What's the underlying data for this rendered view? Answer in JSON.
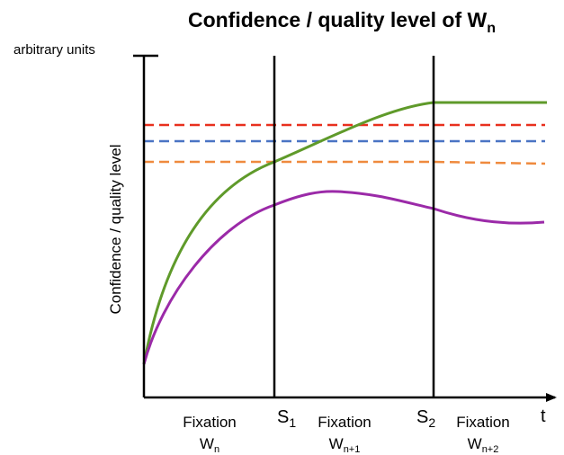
{
  "title": {
    "text": "Confidence / quality level of W",
    "sub": "n"
  },
  "y_unit": "arbitrary units",
  "y_label": "Confidence / quality level",
  "x_label": "t",
  "markers": [
    {
      "label": "S",
      "sub": "1"
    },
    {
      "label": "S",
      "sub": "2"
    }
  ],
  "phases": [
    {
      "label": "Fixation",
      "var": "W",
      "sub": "n"
    },
    {
      "label": "Fixation",
      "var": "W",
      "sub": "n+1"
    },
    {
      "label": "Fixation",
      "var": "W",
      "sub": "n+2"
    }
  ]
}
